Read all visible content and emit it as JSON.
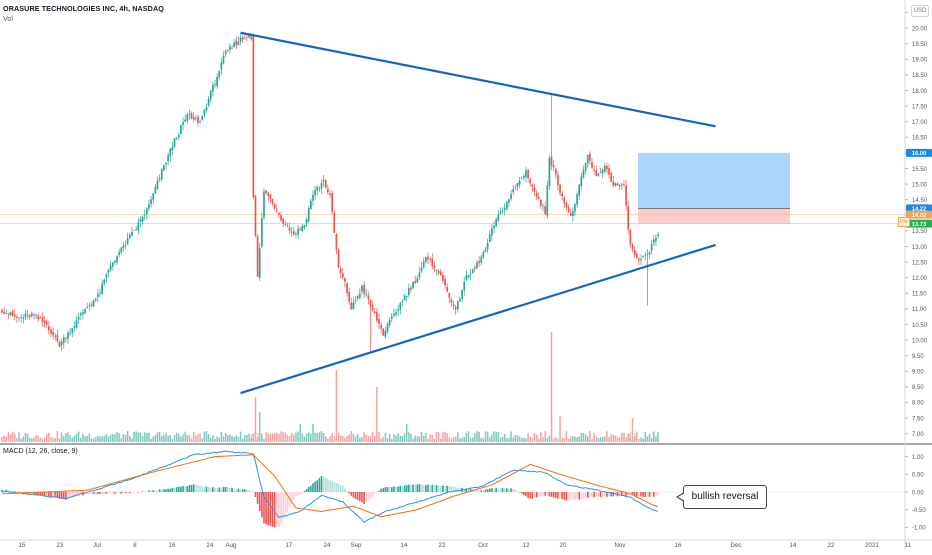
{
  "header": {
    "symbol_line": "ORASURE TECHNOLOGIES INC, 4h, NASDAQ",
    "volume_label": "Vol",
    "currency": "USD",
    "pre_label": "Pre"
  },
  "macd": {
    "title": "MACD (12, 26, close, 9)",
    "callout": "bullish reversal"
  },
  "colors": {
    "up": "#26a69a",
    "down": "#ef5350",
    "trendline": "#1565c0",
    "target_zone": "#90caf9",
    "stop_zone": "#f8c9c9",
    "macd_line": "#2196f3",
    "signal_line": "#ff6d00",
    "badge_blue": "#1e88e5",
    "badge_red": "#ef5350",
    "badge_green": "#22b14c",
    "badge_orange": "#f5a35f"
  },
  "chart_data": [
    {
      "type": "candlestick",
      "title": "ORASURE TECHNOLOGIES INC, 4h, NASDAQ",
      "x_ticks": [
        "15",
        "23",
        "Jul",
        "8",
        "16",
        "24",
        "Aug",
        "17",
        "24",
        "Sep",
        "14",
        "22",
        "Oct",
        "12",
        "20",
        "Nov",
        "16",
        "Dec",
        "14",
        "22",
        "2021",
        "11"
      ],
      "y_ticks": [
        "7.00",
        "7.50",
        "8.00",
        "8.50",
        "9.00",
        "9.50",
        "10.00",
        "10.50",
        "11.00",
        "11.50",
        "12.00",
        "12.50",
        "13.00",
        "13.50",
        "14.00",
        "14.50",
        "15.00",
        "15.50",
        "16.00",
        "16.50",
        "17.00",
        "17.50",
        "18.00",
        "18.50",
        "19.00",
        "19.50",
        "20.00",
        "20.50"
      ],
      "ylim": [
        6.7,
        20.9
      ],
      "price_anchors": [
        [
          0,
          11.0
        ],
        [
          8,
          10.7
        ],
        [
          15,
          10.8
        ],
        [
          22,
          10.5
        ],
        [
          28,
          9.85
        ],
        [
          34,
          10.4
        ],
        [
          40,
          11.0
        ],
        [
          46,
          11.4
        ],
        [
          52,
          12.4
        ],
        [
          58,
          13.0
        ],
        [
          64,
          13.6
        ],
        [
          70,
          14.3
        ],
        [
          76,
          15.4
        ],
        [
          82,
          16.4
        ],
        [
          88,
          17.2
        ],
        [
          94,
          17.0
        ],
        [
          100,
          18.1
        ],
        [
          106,
          19.2
        ],
        [
          112,
          19.6
        ],
        [
          118,
          19.8
        ],
        [
          119,
          14.6
        ],
        [
          121,
          12.0
        ],
        [
          124,
          14.8
        ],
        [
          128,
          14.4
        ],
        [
          133,
          13.8
        ],
        [
          138,
          13.4
        ],
        [
          143,
          13.7
        ],
        [
          147,
          14.7
        ],
        [
          152,
          15.1
        ],
        [
          155,
          14.6
        ],
        [
          159,
          12.3
        ],
        [
          162,
          11.8
        ],
        [
          165,
          11.0
        ],
        [
          170,
          11.7
        ],
        [
          176,
          10.8
        ],
        [
          180,
          10.2
        ],
        [
          185,
          10.8
        ],
        [
          190,
          11.4
        ],
        [
          195,
          11.9
        ],
        [
          200,
          12.6
        ],
        [
          205,
          12.3
        ],
        [
          210,
          11.6
        ],
        [
          214,
          10.9
        ],
        [
          218,
          11.9
        ],
        [
          223,
          12.3
        ],
        [
          228,
          12.9
        ],
        [
          232,
          13.7
        ],
        [
          237,
          14.3
        ],
        [
          242,
          14.9
        ],
        [
          247,
          15.4
        ],
        [
          252,
          14.6
        ],
        [
          256,
          14.1
        ],
        [
          258,
          15.9
        ],
        [
          263,
          14.8
        ],
        [
          268,
          13.9
        ],
        [
          272,
          14.9
        ],
        [
          276,
          15.9
        ],
        [
          280,
          15.2
        ],
        [
          284,
          15.6
        ],
        [
          288,
          15.0
        ],
        [
          293,
          14.9
        ],
        [
          296,
          13.0
        ],
        [
          300,
          12.5
        ],
        [
          304,
          12.7
        ],
        [
          308,
          13.3
        ]
      ],
      "trendlines": [
        {
          "name": "resistance",
          "from": {
            "x_index": 112,
            "y": 19.85
          },
          "to": {
            "x_index": 335,
            "y": 16.85
          }
        },
        {
          "name": "support",
          "from": {
            "x_index": 112,
            "y": 8.3
          },
          "to": {
            "x_index": 335,
            "y": 13.05
          }
        }
      ],
      "zones": [
        {
          "name": "target",
          "y_top": 16.0,
          "y_bottom": 14.22
        },
        {
          "name": "stop",
          "y_top": 14.22,
          "y_bottom": 13.73
        }
      ],
      "price_lines": [
        {
          "name": "pre",
          "y": 14.02
        },
        {
          "name": "last",
          "y": 13.73
        }
      ],
      "price_badges": [
        {
          "label": "16.00",
          "y": 16.0,
          "color": "badge_blue"
        },
        {
          "label": "14.22",
          "y": 14.22,
          "color": "badge_blue"
        },
        {
          "label": "14.02",
          "y": 14.02,
          "color": "badge_orange"
        },
        {
          "label": "13.73",
          "y": 13.73,
          "color": "badge_green"
        }
      ],
      "volume_scale_note": "volume histogram at bottom of price pane"
    },
    {
      "type": "macd",
      "title": "MACD (12, 26, close, 9)",
      "y_ticks": [
        "1.00",
        "0.50",
        "0.00",
        "-0.50",
        "-1.00"
      ],
      "ylim": [
        -1.3,
        1.3
      ],
      "macd_anchors": [
        [
          0,
          0.02
        ],
        [
          30,
          -0.18
        ],
        [
          60,
          0.35
        ],
        [
          90,
          1.05
        ],
        [
          105,
          1.15
        ],
        [
          118,
          1.08
        ],
        [
          123,
          -0.15
        ],
        [
          130,
          -0.72
        ],
        [
          140,
          -0.55
        ],
        [
          150,
          -0.1
        ],
        [
          160,
          -0.28
        ],
        [
          170,
          -0.85
        ],
        [
          180,
          -0.55
        ],
        [
          195,
          -0.28
        ],
        [
          210,
          0.0
        ],
        [
          225,
          0.15
        ],
        [
          240,
          0.62
        ],
        [
          255,
          0.55
        ],
        [
          265,
          0.2
        ],
        [
          280,
          0.05
        ],
        [
          295,
          -0.15
        ],
        [
          305,
          -0.5
        ],
        [
          308,
          -0.55
        ]
      ],
      "signal_anchors": [
        [
          0,
          -0.05
        ],
        [
          40,
          0.05
        ],
        [
          70,
          0.55
        ],
        [
          100,
          1.0
        ],
        [
          118,
          1.05
        ],
        [
          128,
          0.45
        ],
        [
          138,
          -0.45
        ],
        [
          150,
          -0.55
        ],
        [
          165,
          -0.4
        ],
        [
          178,
          -0.7
        ],
        [
          195,
          -0.5
        ],
        [
          212,
          -0.12
        ],
        [
          230,
          0.2
        ],
        [
          248,
          0.78
        ],
        [
          262,
          0.5
        ],
        [
          280,
          0.18
        ],
        [
          295,
          -0.05
        ],
        [
          305,
          -0.35
        ],
        [
          308,
          -0.42
        ]
      ]
    }
  ]
}
